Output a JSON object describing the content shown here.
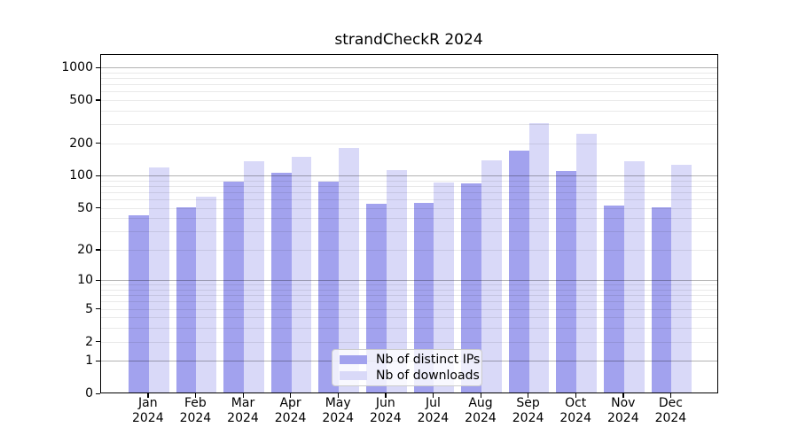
{
  "chart_data": {
    "type": "bar",
    "title": "strandCheckR 2024",
    "categories": [
      "Jan",
      "Feb",
      "Mar",
      "Apr",
      "May",
      "Jun",
      "Jul",
      "Aug",
      "Sep",
      "Oct",
      "Nov",
      "Dec"
    ],
    "year": "2024",
    "series": [
      {
        "name": "Nb of distinct IPs",
        "color": "#a2a2ee",
        "values": [
          42,
          50,
          87,
          105,
          86,
          54,
          55,
          83,
          169,
          108,
          52,
          50
        ]
      },
      {
        "name": "Nb of downloads",
        "color": "#d9d9f8",
        "values": [
          117,
          62,
          133,
          148,
          176,
          110,
          84,
          135,
          300,
          240,
          134,
          123
        ]
      }
    ],
    "yscale": "log1p",
    "ylim": [
      0,
      1330
    ],
    "ytick_values": [
      0,
      1,
      2,
      5,
      10,
      20,
      50,
      100,
      200,
      500,
      1000
    ],
    "ytick_labels": [
      "0",
      "1",
      "2",
      "5",
      "10",
      "20",
      "50",
      "100",
      "200",
      "500",
      "1000"
    ],
    "major_grid_values": [
      1,
      10,
      100,
      1000
    ],
    "minor_grid_values": [
      2,
      3,
      4,
      5,
      6,
      7,
      8,
      9,
      20,
      30,
      40,
      50,
      60,
      70,
      80,
      90,
      200,
      300,
      400,
      500,
      600,
      700,
      800,
      900
    ],
    "grid": true,
    "legend_position": "lower center"
  },
  "colors": {
    "background": "#ffffff",
    "axis": "#000000",
    "major_grid": "#b3b3b3",
    "minor_grid": "#e9e9e9",
    "legend_border": "#cccccc"
  }
}
